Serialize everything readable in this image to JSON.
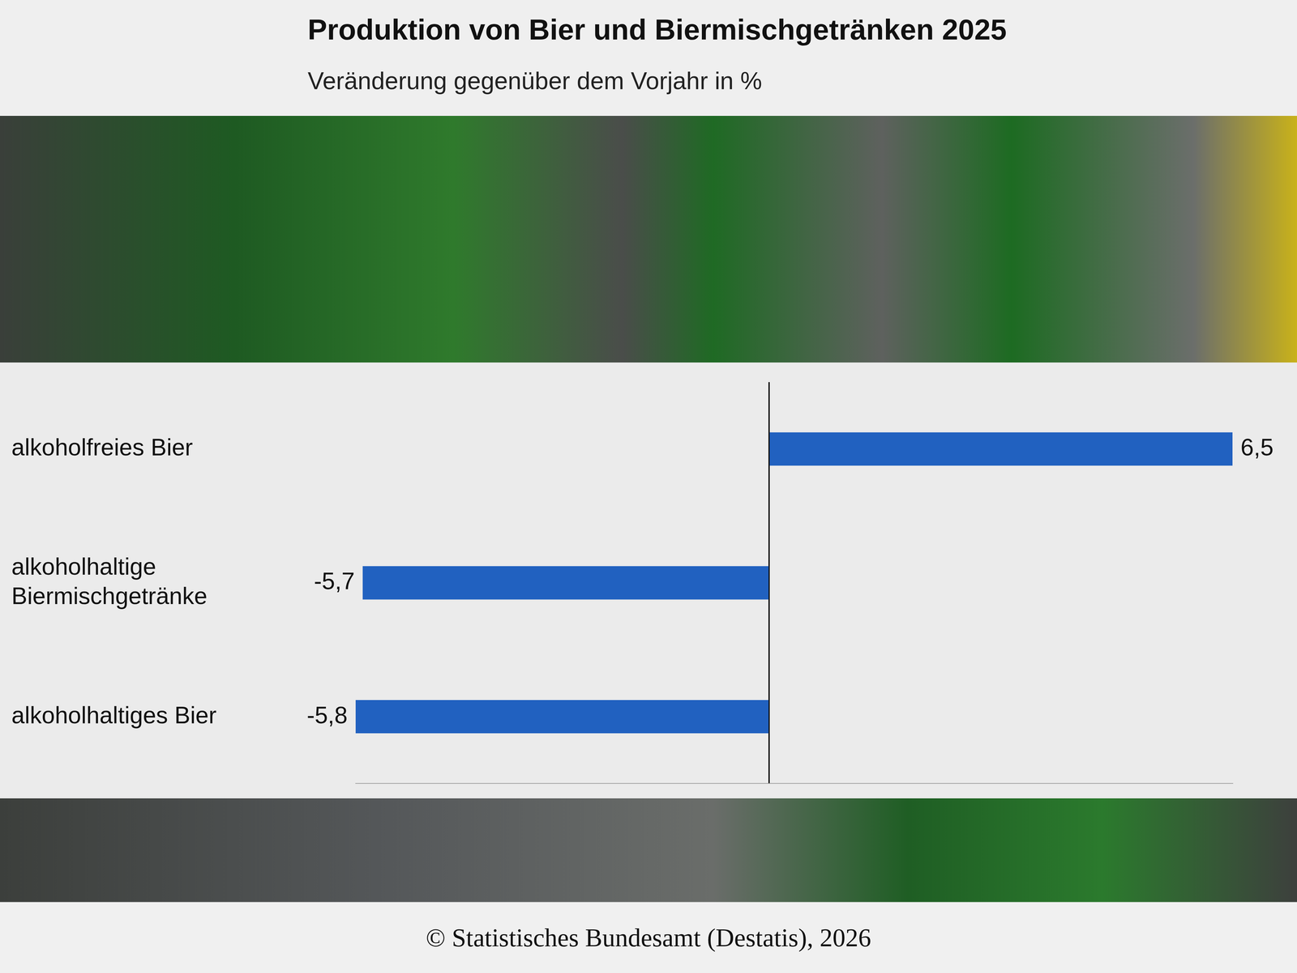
{
  "chart_data": {
    "type": "bar",
    "orientation": "horizontal",
    "title": "Produktion von Bier und Biermischgetränken 2025",
    "subtitle": "Veränderung gegenüber dem Vorjahr in %",
    "source": "© Statistisches Bundesamt (Destatis), 2026",
    "categories": [
      "alkoholfreies Bier",
      "alkoholhaltige Biermischgetränke",
      "alkoholhaltiges Bier"
    ],
    "values": [
      6.5,
      -5.7,
      -5.8
    ],
    "value_labels": [
      "6,5",
      "-5,7",
      "-5,8"
    ],
    "color": "#2161c0",
    "xlim": [
      -5.8,
      6.5
    ],
    "xticks": [
      0
    ],
    "grid": true,
    "data_labels": true,
    "tick_labels": "y"
  }
}
